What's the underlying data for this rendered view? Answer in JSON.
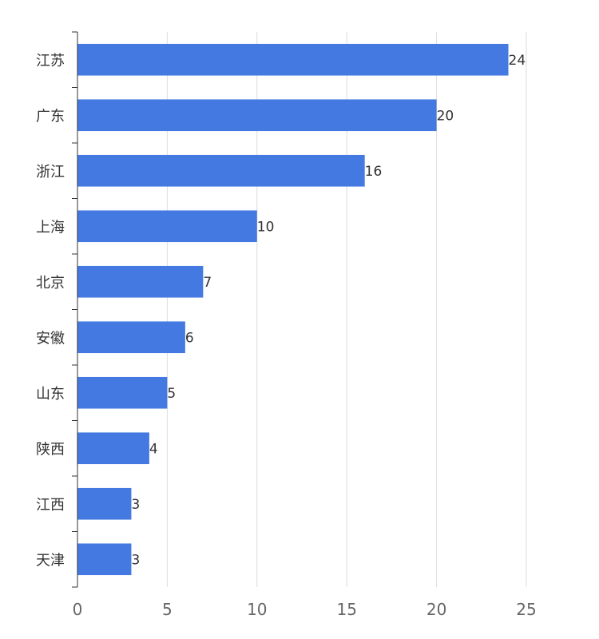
{
  "chart_data": {
    "type": "bar",
    "orientation": "horizontal",
    "categories": [
      "江苏",
      "广东",
      "浙江",
      "上海",
      "北京",
      "安徽",
      "山东",
      "陕西",
      "江西",
      "天津"
    ],
    "values": [
      24,
      20,
      16,
      10,
      7,
      6,
      5,
      4,
      3,
      3
    ],
    "xlim": [
      0,
      25
    ],
    "x_ticks": [
      0,
      5,
      10,
      15,
      20,
      25
    ],
    "grid": true,
    "bar_color": "#4479e1",
    "data_labels": true,
    "title": "",
    "xlabel": "",
    "ylabel": ""
  }
}
